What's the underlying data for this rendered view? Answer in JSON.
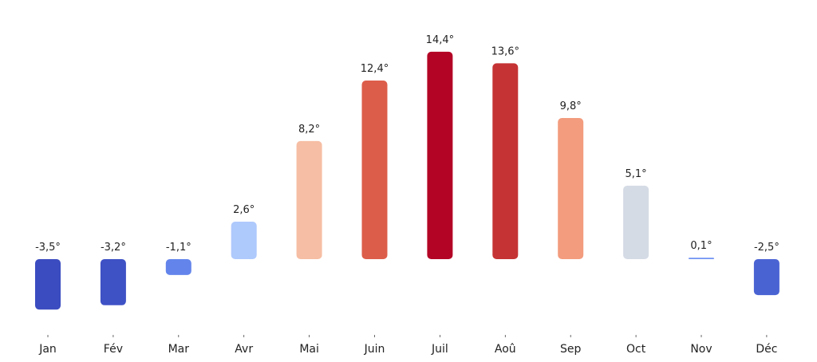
{
  "chart_data": {
    "type": "bar",
    "title": "",
    "xlabel": "",
    "ylabel": "",
    "categories": [
      "Jan",
      "Fév",
      "Mar",
      "Avr",
      "Mai",
      "Juin",
      "Juil",
      "Aoû",
      "Sep",
      "Oct",
      "Nov",
      "Déc"
    ],
    "values": [
      -3.5,
      -3.2,
      -1.1,
      2.6,
      8.2,
      12.4,
      14.4,
      13.6,
      9.8,
      5.1,
      0.1,
      -2.5
    ],
    "value_labels": [
      "-3,5°",
      "-3,2°",
      "-1,1°",
      "2,6°",
      "8,2°",
      "12,4°",
      "14,4°",
      "13,6°",
      "9,8°",
      "5,1°",
      "0,1°",
      "-2,5°"
    ],
    "colors": [
      "#3b4cc0",
      "#3e51c5",
      "#6384eb",
      "#aec9fc",
      "#f6bea4",
      "#dc5d4a",
      "#b40426",
      "#c53334",
      "#f39c7e",
      "#d5dbe5",
      "#7093f3",
      "#4a63d3"
    ],
    "colormap": "coolwarm",
    "ylim": [
      -5,
      16
    ],
    "grid": false,
    "y_axis_visible": false
  }
}
